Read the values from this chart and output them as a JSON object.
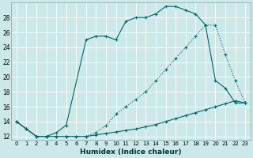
{
  "xlabel": "Humidex (Indice chaleur)",
  "bg_color": "#cce8e8",
  "grid_color": "#ffffff",
  "line_color": "#006666",
  "xlim": [
    -0.5,
    23.5
  ],
  "ylim": [
    11.5,
    30.0
  ],
  "xticks": [
    0,
    1,
    2,
    3,
    4,
    5,
    6,
    7,
    8,
    9,
    10,
    11,
    12,
    13,
    14,
    15,
    16,
    17,
    18,
    19,
    20,
    21,
    22,
    23
  ],
  "yticks": [
    12,
    14,
    16,
    18,
    20,
    22,
    24,
    26,
    28
  ],
  "curve1_x": [
    0,
    1,
    2,
    3,
    4,
    5,
    7,
    8,
    9,
    10,
    11,
    12,
    13,
    14,
    15,
    16,
    17,
    18,
    19,
    20,
    21,
    22,
    23
  ],
  "curve1_y": [
    14,
    13,
    12,
    12,
    12.5,
    13.5,
    25,
    25.5,
    25.5,
    25,
    27.5,
    28,
    28,
    28.5,
    29.5,
    29.5,
    29,
    28.5,
    27,
    19.5,
    18.5,
    16.5,
    16.5
  ],
  "curve2_x": [
    0,
    1,
    2,
    3,
    4,
    5,
    6,
    7,
    8,
    9,
    10,
    11,
    12,
    13,
    14,
    15,
    16,
    17,
    18,
    19,
    20,
    21,
    22,
    23
  ],
  "curve2_y": [
    14,
    13,
    12,
    12,
    12,
    12,
    12,
    12,
    12.5,
    13.5,
    15,
    16,
    17,
    18,
    19.5,
    21,
    22.5,
    24,
    25.5,
    27,
    27,
    23,
    19.5,
    16.5
  ],
  "curve3_x": [
    0,
    1,
    2,
    3,
    4,
    5,
    6,
    7,
    8,
    9,
    10,
    11,
    12,
    13,
    14,
    15,
    16,
    17,
    18,
    19,
    20,
    21,
    22,
    23
  ],
  "curve3_y": [
    14,
    13,
    12,
    12,
    12,
    12,
    12,
    12,
    12.2,
    12.4,
    12.6,
    12.8,
    13.0,
    13.3,
    13.6,
    14.0,
    14.4,
    14.8,
    15.2,
    15.6,
    16.0,
    16.4,
    16.8,
    16.5
  ]
}
